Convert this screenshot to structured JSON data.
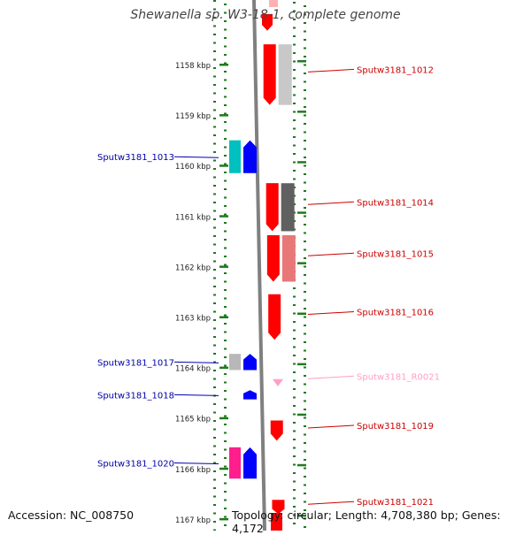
{
  "header": {
    "title": "Shewanella sp. W3-18-1, complete genome"
  },
  "footer": {
    "accession": "Accession: NC_008750",
    "topology": "Topology: circular; Length: 4,708,380 bp; Genes: 4,172"
  },
  "axis": {
    "unit": "kbp",
    "ticks": [
      {
        "value": 1158,
        "label": "1158 kbp"
      },
      {
        "value": 1159,
        "label": "1159 kbp"
      },
      {
        "value": 1160,
        "label": "1160 kbp"
      },
      {
        "value": 1161,
        "label": "1161 kbp"
      },
      {
        "value": 1162,
        "label": "1162 kbp"
      },
      {
        "value": 1163,
        "label": "1163 kbp"
      },
      {
        "value": 1164,
        "label": "1164 kbp"
      },
      {
        "value": 1165,
        "label": "1165 kbp"
      },
      {
        "value": 1166,
        "label": "1166 kbp"
      },
      {
        "value": 1167,
        "label": "1167 kbp"
      }
    ]
  },
  "colors": {
    "forward": "#ff0000",
    "reverse": "#0000ff",
    "rna": "#ff9ec6",
    "backbone": "#808080",
    "dots": "#1e7a1e",
    "tick_text": "#222222"
  },
  "genes": [
    {
      "name": "Sputw3181_1012",
      "strand": "+",
      "start": 1157.6,
      "end": 1158.8,
      "label_color": "#cc0000",
      "track_color": "#c8c8c8"
    },
    {
      "name": "Sputw3181_1013",
      "strand": "-",
      "start": 1159.5,
      "end": 1160.15,
      "label_color": "#0000aa",
      "track_color": "#00c0c0"
    },
    {
      "name": "Sputw3181_1014",
      "strand": "+",
      "start": 1160.35,
      "end": 1161.3,
      "label_color": "#cc0000",
      "track_color": "#606060"
    },
    {
      "name": "Sputw3181_1015",
      "strand": "+",
      "start": 1161.38,
      "end": 1162.3,
      "label_color": "#cc0000",
      "track_color": "#e87878"
    },
    {
      "name": "Sputw3181_1016",
      "strand": "+",
      "start": 1162.55,
      "end": 1163.45,
      "label_color": "#cc0000",
      "track_color": null
    },
    {
      "name": "Sputw3181_1017",
      "strand": "-",
      "start": 1163.73,
      "end": 1164.05,
      "label_color": "#0000aa",
      "track_color": "#b8b8b8"
    },
    {
      "name": "Sputw3181_R0021",
      "strand": "+",
      "start": 1164.23,
      "end": 1164.32,
      "label_color": "#ff9ec6",
      "track_color": null,
      "rna": true
    },
    {
      "name": "Sputw3181_1018",
      "strand": "-",
      "start": 1164.45,
      "end": 1164.63,
      "label_color": "#0000aa",
      "track_color": null
    },
    {
      "name": "Sputw3181_1019",
      "strand": "+",
      "start": 1165.05,
      "end": 1165.45,
      "label_color": "#cc0000",
      "track_color": null
    },
    {
      "name": "Sputw3181_1020",
      "strand": "-",
      "start": 1165.58,
      "end": 1166.2,
      "label_color": "#0000aa",
      "track_color": "#ff1e8c"
    },
    {
      "name": "Sputw3181_1021",
      "strand": "+",
      "start": 1166.62,
      "end": 1166.9,
      "label_color": "#cc0000",
      "track_color": null
    }
  ],
  "clipped_top_gene": {
    "strand": "+",
    "start": 1157.0,
    "end": 1157.33
  }
}
